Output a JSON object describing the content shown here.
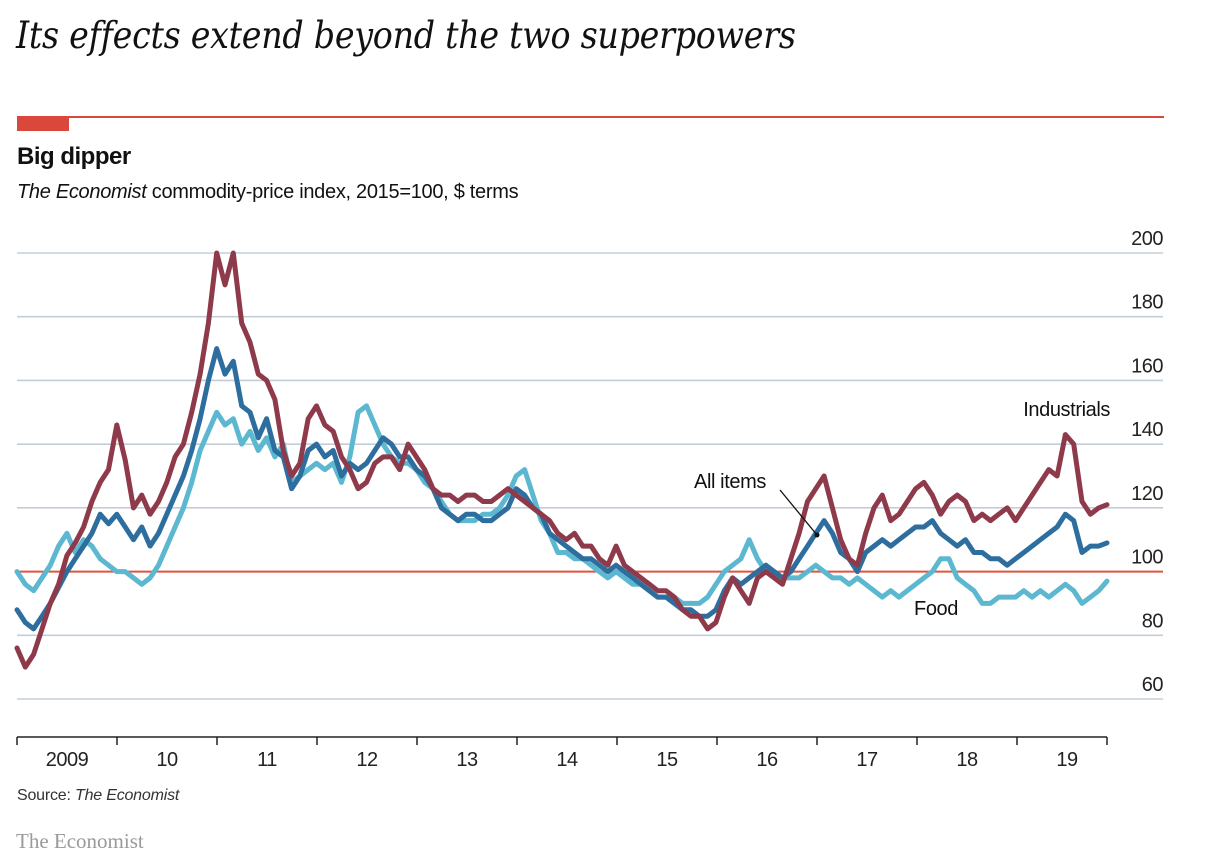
{
  "headline": "Its effects extend beyond the two superpowers",
  "brand": "The Economist",
  "colors": {
    "accent_red": "#d9483b",
    "industrials": "#8e3a4b",
    "all_items": "#2d6e9e",
    "food": "#5cb8d0",
    "gridline": "#c3cdd8",
    "baseline": "#e0543c"
  },
  "chart_data": {
    "type": "line",
    "title": "Big dipper",
    "subtitle_italic": "The Economist",
    "subtitle_rest": " commodity-price index, 2015=100, $ terms",
    "xlabel": "",
    "ylabel": "",
    "ylim": [
      60,
      200
    ],
    "yticks": [
      60,
      80,
      100,
      120,
      140,
      160,
      180,
      200
    ],
    "ytick_labels": [
      "60",
      "80",
      "100",
      "120",
      "140",
      "160",
      "180",
      "200"
    ],
    "y_axis_side": "right",
    "baseline": 100,
    "grid": true,
    "x_start": 2009.0,
    "x_end": 2019.9,
    "xtick_boundaries": [
      2009,
      2010,
      2011,
      2012,
      2013,
      2014,
      2015,
      2016,
      2017,
      2018,
      2019,
      2019.9
    ],
    "xtick_labels": [
      "2009",
      "10",
      "11",
      "12",
      "13",
      "14",
      "15",
      "16",
      "17",
      "18",
      "19"
    ],
    "x_step_months": 1,
    "source_label": "Source: ",
    "source_italic": "The Economist",
    "annotations": [
      {
        "text": "Industrials",
        "series": "Industrials"
      },
      {
        "text": "All items",
        "series": "All items",
        "arrow": true
      },
      {
        "text": "Food",
        "series": "Food"
      }
    ],
    "series": [
      {
        "name": "Industrials",
        "color": "#8e3a4b",
        "values": [
          76,
          70,
          74,
          82,
          90,
          96,
          105,
          109,
          114,
          122,
          128,
          132,
          146,
          135,
          120,
          124,
          118,
          122,
          128,
          136,
          140,
          150,
          162,
          178,
          200,
          190,
          200,
          178,
          172,
          162,
          160,
          154,
          138,
          130,
          134,
          148,
          152,
          146,
          144,
          136,
          132,
          126,
          128,
          134,
          136,
          136,
          132,
          140,
          136,
          132,
          126,
          124,
          124,
          122,
          124,
          124,
          122,
          122,
          124,
          126,
          124,
          122,
          120,
          118,
          116,
          112,
          110,
          112,
          108,
          108,
          104,
          102,
          108,
          102,
          100,
          98,
          96,
          94,
          94,
          92,
          88,
          86,
          86,
          82,
          84,
          92,
          98,
          94,
          90,
          98,
          100,
          98,
          96,
          104,
          112,
          122,
          126,
          130,
          120,
          110,
          104,
          102,
          112,
          120,
          124,
          116,
          118,
          122,
          126,
          128,
          124,
          118,
          122,
          124,
          122,
          116,
          118,
          116,
          118,
          120,
          116,
          120,
          124,
          128,
          132,
          130,
          143,
          140,
          122,
          118,
          120,
          121
        ]
      },
      {
        "name": "All items",
        "color": "#2d6e9e",
        "values": [
          88,
          84,
          82,
          86,
          90,
          95,
          100,
          104,
          108,
          112,
          118,
          115,
          118,
          114,
          110,
          114,
          108,
          112,
          118,
          124,
          130,
          138,
          148,
          160,
          170,
          162,
          166,
          152,
          150,
          142,
          148,
          138,
          136,
          126,
          130,
          138,
          140,
          136,
          138,
          130,
          134,
          132,
          134,
          138,
          142,
          140,
          136,
          136,
          132,
          130,
          126,
          120,
          118,
          116,
          118,
          118,
          116,
          116,
          118,
          120,
          126,
          124,
          120,
          118,
          112,
          110,
          108,
          106,
          104,
          104,
          102,
          100,
          102,
          100,
          98,
          96,
          94,
          92,
          92,
          90,
          88,
          88,
          86,
          86,
          88,
          94,
          98,
          96,
          98,
          100,
          102,
          100,
          98,
          100,
          104,
          108,
          112,
          116,
          112,
          106,
          104,
          100,
          106,
          108,
          110,
          108,
          110,
          112,
          114,
          114,
          116,
          112,
          110,
          108,
          110,
          106,
          106,
          104,
          104,
          102,
          104,
          106,
          108,
          110,
          112,
          114,
          118,
          116,
          106,
          108,
          108,
          109
        ]
      },
      {
        "name": "Food",
        "color": "#5cb8d0",
        "values": [
          100,
          96,
          94,
          98,
          102,
          108,
          112,
          106,
          110,
          108,
          104,
          102,
          100,
          100,
          98,
          96,
          98,
          102,
          108,
          114,
          120,
          128,
          138,
          144,
          150,
          146,
          148,
          140,
          144,
          138,
          142,
          136,
          140,
          128,
          130,
          132,
          134,
          132,
          134,
          128,
          136,
          150,
          152,
          146,
          140,
          136,
          134,
          134,
          132,
          128,
          126,
          122,
          118,
          116,
          116,
          116,
          118,
          118,
          120,
          124,
          130,
          132,
          124,
          116,
          112,
          106,
          106,
          104,
          104,
          102,
          100,
          98,
          100,
          98,
          96,
          96,
          94,
          92,
          92,
          92,
          90,
          90,
          90,
          92,
          96,
          100,
          102,
          104,
          110,
          104,
          100,
          100,
          98,
          98,
          98,
          100,
          102,
          100,
          98,
          98,
          96,
          98,
          96,
          94,
          92,
          94,
          92,
          94,
          96,
          98,
          100,
          104,
          104,
          98,
          96,
          94,
          90,
          90,
          92,
          92,
          92,
          94,
          92,
          94,
          92,
          94,
          96,
          94,
          90,
          92,
          94,
          97
        ]
      }
    ]
  }
}
